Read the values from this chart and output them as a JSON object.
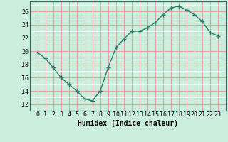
{
  "x": [
    0,
    1,
    2,
    3,
    4,
    5,
    6,
    7,
    8,
    9,
    10,
    11,
    12,
    13,
    14,
    15,
    16,
    17,
    18,
    19,
    20,
    21,
    22,
    23
  ],
  "y": [
    19.8,
    18.9,
    17.5,
    16.0,
    15.0,
    14.0,
    12.8,
    12.5,
    14.0,
    17.5,
    20.5,
    21.8,
    23.0,
    23.0,
    23.5,
    24.3,
    25.5,
    26.5,
    26.8,
    26.2,
    25.5,
    24.5,
    22.8,
    22.3
  ],
  "line_color": "#2e7d6e",
  "marker": "+",
  "marker_size": 4,
  "marker_linewidth": 1.0,
  "xlabel": "Humidex (Indice chaleur)",
  "bg_color": "#cceedd",
  "grid_minor_color": "#ffffff",
  "grid_major_color": "#e8a0a0",
  "ylim": [
    11.5,
    27.5
  ],
  "xlim": [
    -0.5,
    23.5
  ],
  "yticks": [
    12,
    14,
    16,
    18,
    20,
    22,
    24,
    26
  ],
  "xticks": [
    0,
    1,
    2,
    3,
    4,
    5,
    6,
    7,
    8,
    9,
    10,
    11,
    12,
    13,
    14,
    15,
    16,
    17,
    18,
    19,
    20,
    21,
    22,
    23
  ],
  "xlabel_fontsize": 7,
  "tick_fontsize": 6,
  "line_width": 1.0,
  "fig_width": 3.2,
  "fig_height": 2.0,
  "dpi": 100
}
